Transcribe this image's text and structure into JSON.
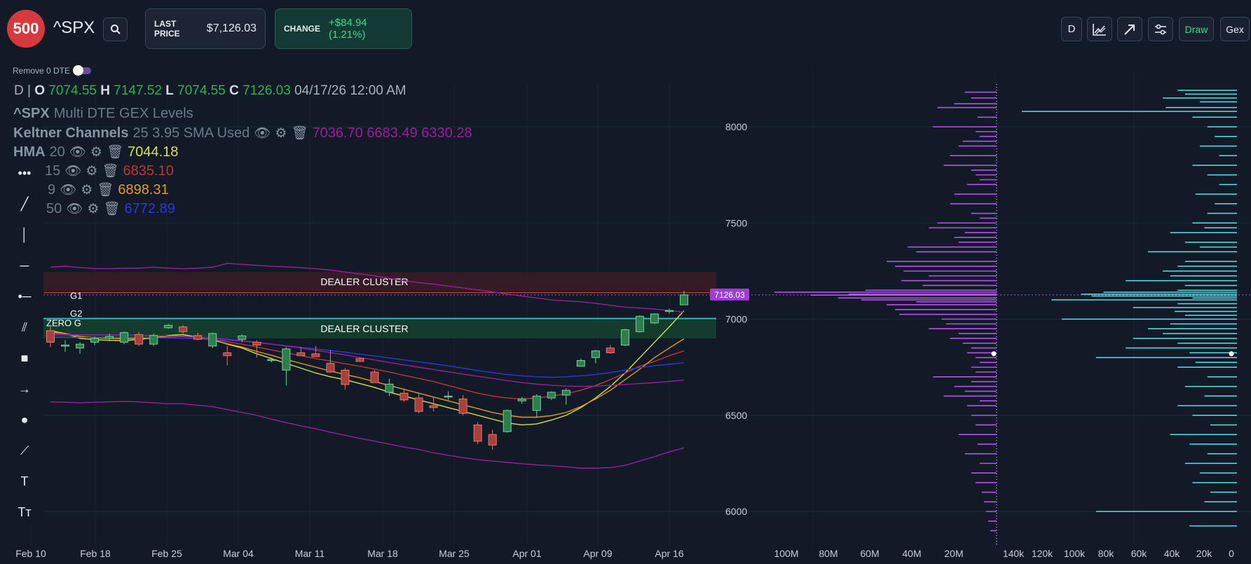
{
  "header": {
    "logo_text": "500",
    "ticker": "^SPX",
    "search_icon": "search-icon",
    "last_price_label": "LAST PRICE",
    "last_price_value": "$7,126.03",
    "change_label": "CHANGE",
    "change_value": "+$84.94 (1.21%)",
    "right_buttons": {
      "timeframe": "D",
      "chart_type_icon": "line-chart-icon",
      "arrow_icon": "diagonal-arrow-icon",
      "settings_icon": "sliders-icon",
      "draw": "Draw",
      "gex": "Gex"
    },
    "colors": {
      "logo": "#d63a3e",
      "change_bg": "#133a34",
      "change_text": "#3ddc84",
      "draw_text": "#3ddc84"
    }
  },
  "options": {
    "remove_0dte_label": "Remove 0 DTE",
    "remove_0dte_on": false
  },
  "legend": {
    "interval": "D",
    "separator": "|",
    "open_label": "O",
    "open": "7074.55",
    "high_label": "H",
    "high": "7147.52",
    "low_label": "L",
    "low": "7074.55",
    "close_label": "C",
    "close": "7126.03",
    "datetime": "04/17/26 12:00 AM",
    "gex_title_name": "^SPX",
    "gex_title_rest": "Multi DTE GEX Levels",
    "keltner": {
      "name": "Keltner Channels",
      "params": "25 3.95 SMA Used",
      "values": "7036.70 6683.49 6330.28",
      "color": "#9a1f9a"
    },
    "indicators": [
      {
        "name": "HMA",
        "period": "20",
        "value": "7044.18",
        "color": "#d7e04a"
      },
      {
        "name": "",
        "period": "15",
        "value": "6835.10",
        "color": "#c0353a"
      },
      {
        "name": "",
        "period": "9",
        "value": "6898.31",
        "color": "#e39a2c"
      },
      {
        "name": "",
        "period": "50",
        "value": "6772.89",
        "color": "#2a3ad6"
      }
    ]
  },
  "toolbar": [
    {
      "name": "more-tools-icon",
      "glyph": "•••"
    },
    {
      "name": "trend-line-icon",
      "glyph": "╱"
    },
    {
      "name": "vertical-line-icon",
      "glyph": "│"
    },
    {
      "name": "horizontal-line-icon",
      "glyph": "─"
    },
    {
      "name": "horizontal-ray-icon",
      "glyph": "•─"
    },
    {
      "name": "parallel-channel-icon",
      "glyph": "⫽"
    },
    {
      "name": "rectangle-icon",
      "glyph": "■"
    },
    {
      "name": "arrow-right-icon",
      "glyph": "→"
    },
    {
      "name": "circle-icon",
      "glyph": "●"
    },
    {
      "name": "polyline-icon",
      "glyph": "⟋"
    },
    {
      "name": "text-icon",
      "glyph": "T"
    },
    {
      "name": "text-size-icon",
      "glyph": "Tт"
    }
  ],
  "chart": {
    "price_label": "7126.03",
    "zones": [
      {
        "label": "DEALER CLUSTER",
        "top": 7245,
        "bottom": 7145,
        "color": "#3a1c26"
      },
      {
        "label": "DEALER CLUSTER",
        "top": 7000,
        "bottom": 6900,
        "color": "#15402f"
      }
    ],
    "levels": [
      {
        "label": "G1",
        "value": 7138,
        "color": "#c84040"
      },
      {
        "label": "G2",
        "value": 7012,
        "color": "#2e8a8a"
      },
      {
        "label": "ZERO G",
        "value": 7003,
        "color": "#3bb0b0"
      }
    ]
  },
  "chart_data": [
    {
      "type": "candlestick",
      "title": "",
      "x_ticks": [
        "Feb 10",
        "Feb 18",
        "Feb 25",
        "Mar 04",
        "Mar 11",
        "Mar 18",
        "Mar 25",
        "Apr 01",
        "Apr 09",
        "Apr 16"
      ],
      "y_ticks": [
        6000,
        6500,
        7000,
        7500,
        8000
      ],
      "ylim": [
        5830,
        8210
      ],
      "current_price": 7126.03,
      "ohlc": [
        [
          6940,
          6960,
          6855,
          6880
        ],
        [
          6862,
          6890,
          6830,
          6865
        ],
        [
          6850,
          6880,
          6820,
          6870
        ],
        [
          6880,
          6910,
          6865,
          6900
        ],
        [
          6900,
          6925,
          6885,
          6910
        ],
        [
          6880,
          6935,
          6870,
          6930
        ],
        [
          6920,
          6935,
          6860,
          6870
        ],
        [
          6870,
          6925,
          6860,
          6915
        ],
        [
          6955,
          6975,
          6950,
          6968
        ],
        [
          6960,
          6970,
          6925,
          6935
        ],
        [
          6915,
          6930,
          6890,
          6895
        ],
        [
          6860,
          6930,
          6850,
          6925
        ],
        [
          6825,
          6860,
          6760,
          6810
        ],
        [
          6895,
          6920,
          6880,
          6913
        ],
        [
          6880,
          6890,
          6800,
          6865
        ],
        [
          6785,
          6800,
          6775,
          6790
        ],
        [
          6735,
          6855,
          6655,
          6845
        ],
        [
          6825,
          6855,
          6815,
          6810
        ],
        [
          6820,
          6860,
          6810,
          6805
        ],
        [
          6770,
          6840,
          6720,
          6725
        ],
        [
          6735,
          6745,
          6635,
          6660
        ],
        [
          6795,
          6800,
          6785,
          6780
        ],
        [
          6725,
          6735,
          6680,
          6670
        ],
        [
          6620,
          6690,
          6600,
          6662
        ],
        [
          6615,
          6640,
          6570,
          6580
        ],
        [
          6590,
          6615,
          6510,
          6520
        ],
        [
          6550,
          6595,
          6520,
          6540
        ],
        [
          6595,
          6625,
          6580,
          6600
        ],
        [
          6585,
          6605,
          6500,
          6510
        ],
        [
          6450,
          6465,
          6350,
          6365
        ],
        [
          6400,
          6425,
          6320,
          6345
        ],
        [
          6415,
          6530,
          6410,
          6525
        ],
        [
          6575,
          6595,
          6560,
          6585
        ],
        [
          6525,
          6610,
          6490,
          6600
        ],
        [
          6590,
          6625,
          6580,
          6620
        ],
        [
          6605,
          6640,
          6555,
          6630
        ],
        [
          6755,
          6795,
          6755,
          6785
        ],
        [
          6800,
          6840,
          6770,
          6835
        ],
        [
          6850,
          6865,
          6820,
          6825
        ],
        [
          6865,
          6950,
          6860,
          6945
        ],
        [
          6935,
          7020,
          6930,
          7015
        ],
        [
          6980,
          7030,
          6975,
          7027
        ],
        [
          7040,
          7055,
          7030,
          7045
        ],
        [
          7074.55,
          7147.52,
          7074.55,
          7126.03
        ]
      ],
      "series": [
        {
          "name": "HMA 20",
          "color": "#d7e04a",
          "values": [
            6940,
            6925,
            6900,
            6893,
            6890,
            6888,
            6895,
            6902,
            6915,
            6920,
            6905,
            6893,
            6870,
            6850,
            6820,
            6795,
            6770,
            6745,
            6720,
            6700,
            6685,
            6665,
            6645,
            6620,
            6600,
            6580,
            6560,
            6540,
            6520,
            6500,
            6480,
            6460,
            6450,
            6455,
            6475,
            6500,
            6540,
            6590,
            6650,
            6720,
            6800,
            6880,
            6960,
            7044
          ]
        },
        {
          "name": "15",
          "color": "#c0353a",
          "values": [
            6930,
            6920,
            6910,
            6905,
            6905,
            6905,
            6905,
            6905,
            6908,
            6910,
            6905,
            6895,
            6882,
            6870,
            6855,
            6840,
            6825,
            6810,
            6795,
            6782,
            6768,
            6755,
            6740,
            6725,
            6708,
            6692,
            6675,
            6655,
            6635,
            6615,
            6600,
            6590,
            6585,
            6590,
            6600,
            6612,
            6630,
            6655,
            6685,
            6720,
            6755,
            6780,
            6810,
            6835
          ]
        },
        {
          "name": "9",
          "color": "#e39a2c",
          "values": [
            6935,
            6925,
            6910,
            6903,
            6900,
            6898,
            6900,
            6905,
            6910,
            6912,
            6905,
            6890,
            6872,
            6855,
            6832,
            6812,
            6790,
            6770,
            6750,
            6730,
            6712,
            6695,
            6675,
            6655,
            6635,
            6615,
            6595,
            6575,
            6555,
            6535,
            6515,
            6500,
            6490,
            6490,
            6498,
            6515,
            6545,
            6585,
            6630,
            6685,
            6740,
            6800,
            6850,
            6898
          ]
        },
        {
          "name": "50",
          "color": "#2a3ad6",
          "values": [
            6905,
            6905,
            6905,
            6905,
            6905,
            6905,
            6904,
            6903,
            6902,
            6900,
            6898,
            6894,
            6890,
            6885,
            6878,
            6870,
            6862,
            6853,
            6845,
            6837,
            6828,
            6818,
            6808,
            6798,
            6788,
            6778,
            6768,
            6757,
            6745,
            6733,
            6722,
            6712,
            6705,
            6700,
            6698,
            6700,
            6705,
            6712,
            6722,
            6735,
            6748,
            6758,
            6765,
            6772.89
          ]
        },
        {
          "name": "Keltner Upper",
          "color": "#9a1f9a",
          "values": [
            7270,
            7275,
            7268,
            7263,
            7262,
            7265,
            7265,
            7270,
            7265,
            7262,
            7265,
            7270,
            7290,
            7285,
            7280,
            7275,
            7272,
            7268,
            7262,
            7255,
            7245,
            7235,
            7225,
            7212,
            7200,
            7190,
            7182,
            7172,
            7162,
            7152,
            7142,
            7130,
            7120,
            7110,
            7100,
            7095,
            7090,
            7082,
            7072,
            7062,
            7058,
            7052,
            7045,
            7036.7
          ]
        },
        {
          "name": "Keltner Middle",
          "color": "#9a1f9a",
          "values": [
            6920,
            6920,
            6918,
            6918,
            6918,
            6918,
            6916,
            6915,
            6912,
            6910,
            6906,
            6900,
            6896,
            6888,
            6880,
            6870,
            6860,
            6850,
            6838,
            6826,
            6814,
            6800,
            6788,
            6775,
            6762,
            6750,
            6738,
            6726,
            6714,
            6703,
            6692,
            6680,
            6670,
            6662,
            6656,
            6652,
            6650,
            6652,
            6656,
            6660,
            6665,
            6670,
            6676,
            6683.49
          ]
        },
        {
          "name": "Keltner Lower",
          "color": "#9a1f9a",
          "values": [
            6570,
            6568,
            6565,
            6568,
            6570,
            6572,
            6570,
            6565,
            6560,
            6560,
            6552,
            6545,
            6530,
            6515,
            6500,
            6480,
            6462,
            6445,
            6430,
            6412,
            6396,
            6380,
            6365,
            6350,
            6335,
            6322,
            6305,
            6292,
            6280,
            6270,
            6262,
            6255,
            6248,
            6242,
            6238,
            6232,
            6225,
            6225,
            6228,
            6240,
            6262,
            6285,
            6310,
            6330.28
          ]
        }
      ]
    },
    {
      "type": "bar",
      "orientation": "horizontal",
      "title": "",
      "x_ticks": [
        "100M",
        "80M",
        "60M",
        "40M",
        "20M"
      ],
      "xlim": [
        0,
        110000000
      ],
      "color": "#b055e6",
      "y_price": [
        8180,
        8150,
        8120,
        8100,
        8050,
        8000,
        7975,
        7950,
        7925,
        7900,
        7850,
        7800,
        7775,
        7750,
        7725,
        7700,
        7650,
        7600,
        7550,
        7525,
        7500,
        7475,
        7450,
        7425,
        7400,
        7375,
        7350,
        7300,
        7275,
        7250,
        7225,
        7200,
        7175,
        7150,
        7140,
        7130,
        7125,
        7110,
        7100,
        7090,
        7075,
        7050,
        7025,
        7000,
        6975,
        6950,
        6925,
        6900,
        6875,
        6850,
        6825,
        6800,
        6775,
        6750,
        6725,
        6700,
        6675,
        6650,
        6625,
        6600,
        6575,
        6550,
        6500,
        6450,
        6400,
        6350,
        6300,
        6250,
        6200,
        6150,
        6100,
        6050,
        6000,
        5950,
        5900
      ],
      "values": [
        15000000,
        12000000,
        20000000,
        28000000,
        9000000,
        30000000,
        10000000,
        8000000,
        16000000,
        18000000,
        22000000,
        25000000,
        12000000,
        10000000,
        8000000,
        14000000,
        20000000,
        22000000,
        12000000,
        8000000,
        28000000,
        32000000,
        15000000,
        20000000,
        18000000,
        42000000,
        38000000,
        52000000,
        48000000,
        44000000,
        32000000,
        45000000,
        35000000,
        62000000,
        105000000,
        70000000,
        88000000,
        75000000,
        64000000,
        38000000,
        52000000,
        48000000,
        46000000,
        26000000,
        24000000,
        32000000,
        18000000,
        22000000,
        16000000,
        12000000,
        14000000,
        10000000,
        8000000,
        12000000,
        10000000,
        30000000,
        12000000,
        20000000,
        15000000,
        25000000,
        8000000,
        14000000,
        12000000,
        10000000,
        18000000,
        9000000,
        15000000,
        8000000,
        12000000,
        10000000,
        7000000,
        6000000,
        5000000,
        4000000,
        3000000
      ]
    },
    {
      "type": "bar",
      "orientation": "horizontal",
      "title": "",
      "x_ticks": [
        "140k",
        "120k",
        "100k",
        "80k",
        "60k",
        "40k",
        "20k",
        "0"
      ],
      "xlim": [
        0,
        150000
      ],
      "color": "#5ee0e6",
      "y_price": [
        8190,
        8170,
        8150,
        8130,
        8100,
        8080,
        8050,
        8000,
        7950,
        7900,
        7850,
        7800,
        7750,
        7700,
        7650,
        7600,
        7550,
        7500,
        7475,
        7450,
        7400,
        7375,
        7350,
        7300,
        7275,
        7250,
        7225,
        7200,
        7175,
        7150,
        7140,
        7130,
        7120,
        7110,
        7100,
        7080,
        7060,
        7040,
        7020,
        7000,
        6975,
        6950,
        6925,
        6900,
        6875,
        6850,
        6825,
        6800,
        6775,
        6750,
        6700,
        6650,
        6600,
        6550,
        6500,
        6450,
        6400,
        6350,
        6300,
        6250,
        6200,
        6150,
        6100,
        6050,
        6000,
        5925
      ],
      "values": [
        40000,
        35000,
        50000,
        25000,
        48000,
        145000,
        30000,
        20000,
        15000,
        25000,
        12000,
        30000,
        20000,
        12000,
        28000,
        15000,
        20000,
        30000,
        22000,
        45000,
        35000,
        25000,
        60000,
        35000,
        40000,
        50000,
        45000,
        75000,
        35000,
        40000,
        90000,
        105000,
        98000,
        30000,
        125000,
        40000,
        70000,
        42000,
        35000,
        118000,
        45000,
        60000,
        50000,
        70000,
        40000,
        75000,
        32000,
        95000,
        28000,
        40000,
        20000,
        35000,
        22000,
        40000,
        30000,
        18000,
        45000,
        32000,
        20000,
        35000,
        25000,
        30000,
        18000,
        22000,
        95000,
        32000
      ]
    }
  ]
}
